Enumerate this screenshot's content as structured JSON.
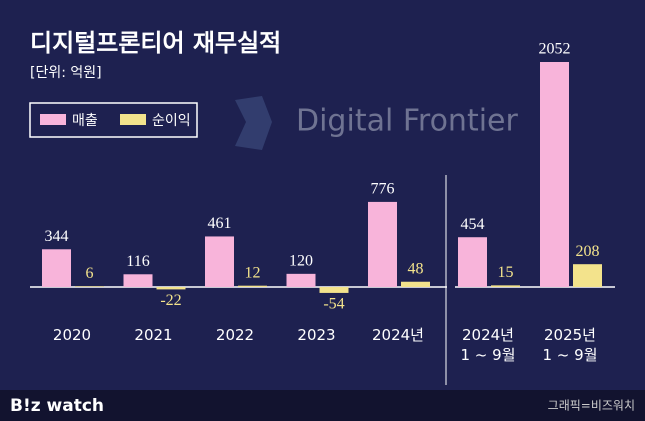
{
  "chart_data": {
    "type": "bar",
    "title": "디지털프론티어 재무실적",
    "subtitle": "[단위: 억원]",
    "watermark": "Digital Frontier",
    "categories": [
      "2020",
      "2021",
      "2022",
      "2023",
      "2024년",
      "2024년\n1 ~ 9월",
      "2025년\n1 ~ 9월"
    ],
    "series": [
      {
        "name": "매출",
        "color": "#f8b4da",
        "values": [
          344,
          116,
          461,
          120,
          776,
          454,
          2052
        ]
      },
      {
        "name": "순이익",
        "color": "#f3e38c",
        "values": [
          6,
          -22,
          12,
          -54,
          48,
          15,
          208
        ]
      }
    ],
    "legend": "top-left"
  },
  "footer": {
    "brand": "B!z watch",
    "credit": "그래픽=비즈워치"
  }
}
